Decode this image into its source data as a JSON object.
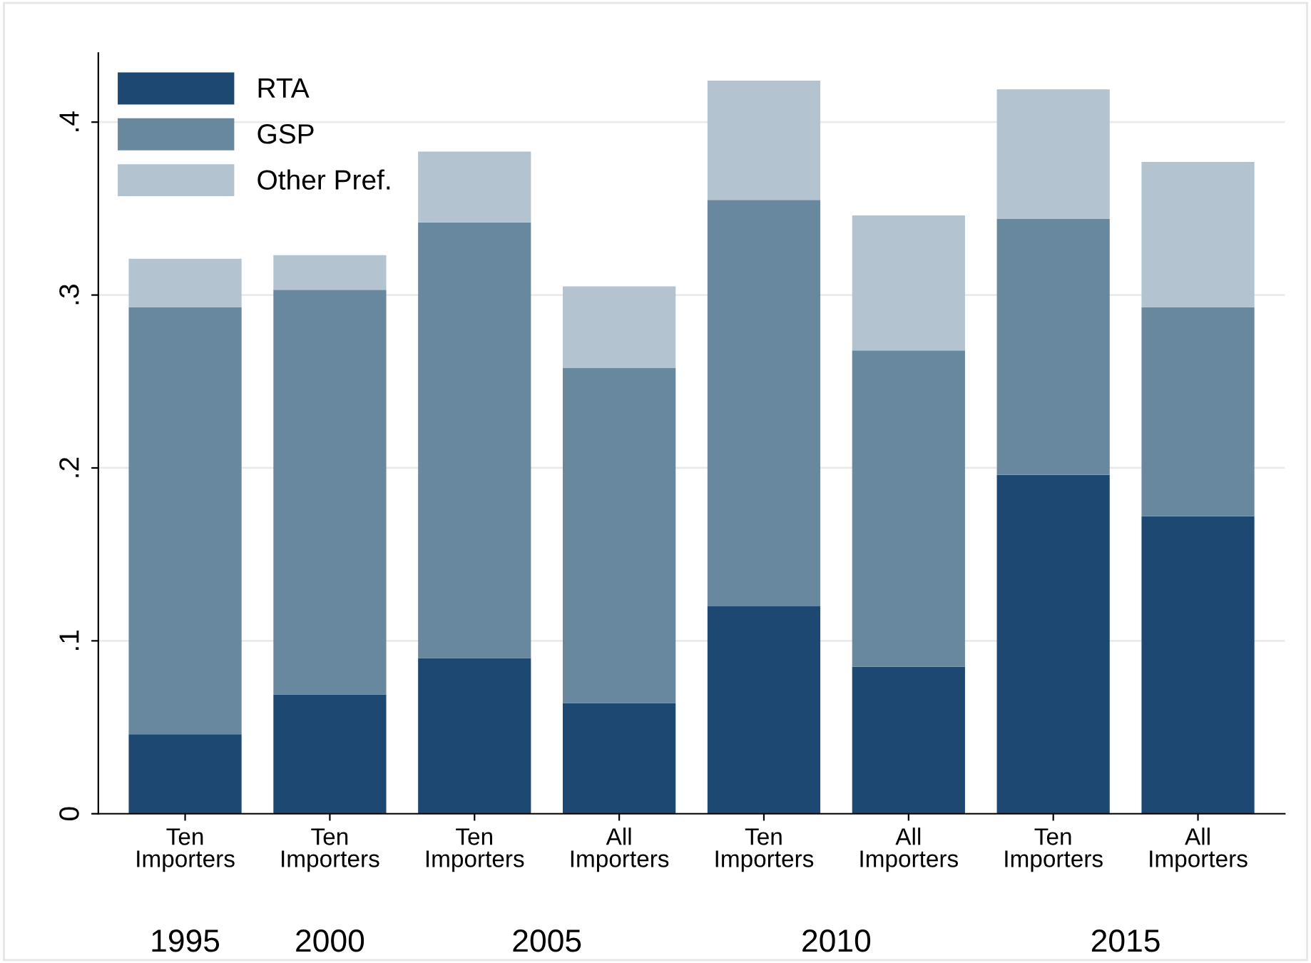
{
  "chart_data": {
    "type": "bar",
    "stacked": true,
    "categories": [
      "Ten\nImporters",
      "Ten\nImporters",
      "Ten\nImporters",
      "All\nImporters",
      "Ten\nImporters",
      "All\nImporters",
      "Ten\nImporters",
      "All\nImporters"
    ],
    "series": [
      {
        "name": "RTA",
        "color": "#1d4872",
        "values": [
          0.046,
          0.069,
          0.09,
          0.064,
          0.12,
          0.085,
          0.196,
          0.172
        ]
      },
      {
        "name": "GSP",
        "color": "#68889f",
        "values": [
          0.247,
          0.234,
          0.252,
          0.194,
          0.235,
          0.183,
          0.148,
          0.121
        ]
      },
      {
        "name": "Other Pref.",
        "color": "#b3c3d0",
        "values": [
          0.028,
          0.02,
          0.041,
          0.047,
          0.069,
          0.078,
          0.075,
          0.084
        ]
      }
    ],
    "annotations": [
      "1995",
      "2000",
      "2005",
      "2010",
      "2015"
    ],
    "ylim": [
      0,
      0.44
    ],
    "yticks": [
      {
        "value": 0,
        "label": "0"
      },
      {
        "value": 0.1,
        "label": ".1"
      },
      {
        "value": 0.2,
        "label": ".2"
      },
      {
        "value": 0.3,
        "label": ".3"
      },
      {
        "value": 0.4,
        "label": ".4"
      }
    ],
    "grid": "y",
    "legend": "top left"
  }
}
